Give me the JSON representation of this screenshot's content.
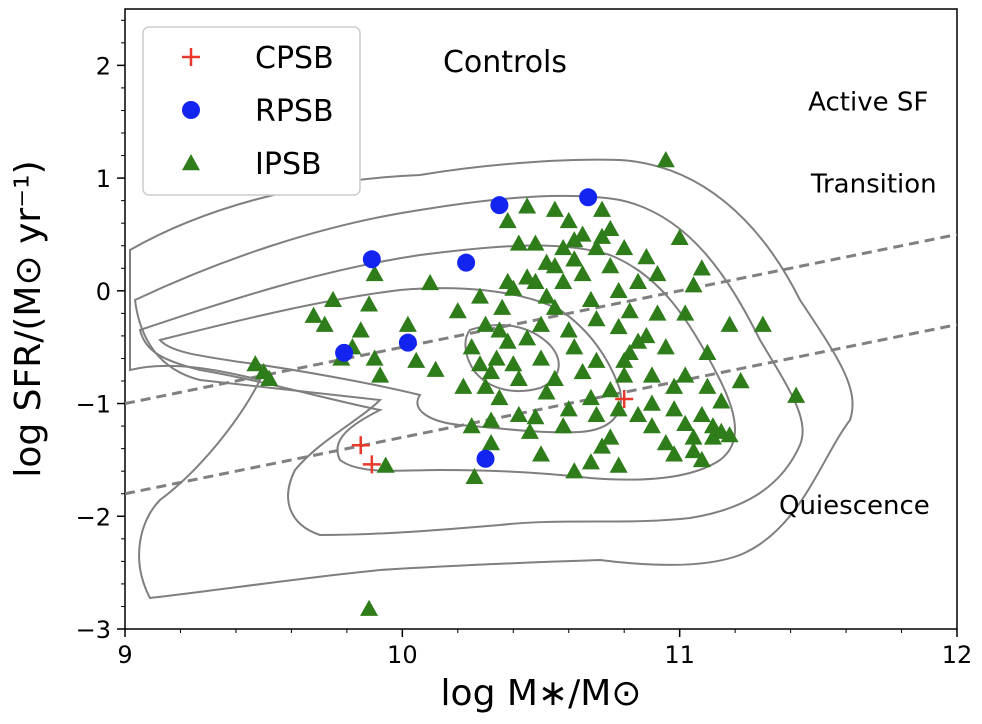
{
  "chart_data": {
    "type": "scatter",
    "title": "Controls",
    "xlabel": "log M∗/M⊙",
    "ylabel": "log SFR/(M⊙ yr⁻¹)",
    "xlim": [
      9,
      12
    ],
    "ylim": [
      -3,
      2.5
    ],
    "xticks": [
      9,
      10,
      11,
      12
    ],
    "xtick_labels": [
      "9",
      "10",
      "11",
      "12"
    ],
    "yticks": [
      -3,
      -2,
      -1,
      0,
      1,
      2
    ],
    "ytick_labels": [
      "−3",
      "−2",
      "−1",
      "0",
      "1",
      "2"
    ],
    "legend_position": "top-left",
    "region_labels": [
      {
        "text": "Active SF",
        "x": 11.68,
        "y": 1.6
      },
      {
        "text": "Transition",
        "x": 11.7,
        "y": 0.87
      },
      {
        "text": "Quiescence",
        "x": 11.63,
        "y": -1.98
      }
    ],
    "dividing_lines": [
      {
        "name": "upper",
        "x": [
          9,
          12
        ],
        "y": [
          -1.0,
          0.5
        ],
        "color": "#808080",
        "style": "dashed"
      },
      {
        "name": "lower",
        "x": [
          9,
          12
        ],
        "y": [
          -1.8,
          -0.3
        ],
        "color": "#808080",
        "style": "dashed"
      }
    ],
    "contour_color": "#7f7f7f",
    "series": [
      {
        "name": "CPSB",
        "marker": "plus",
        "color": "#e8392c",
        "points": [
          [
            9.85,
            -1.37
          ],
          [
            9.89,
            -1.54
          ],
          [
            10.8,
            -0.96
          ]
        ]
      },
      {
        "name": "RPSB",
        "marker": "circle",
        "color": "#1424f0",
        "points": [
          [
            9.79,
            -0.55
          ],
          [
            9.89,
            0.28
          ],
          [
            10.02,
            -0.46
          ],
          [
            10.23,
            0.25
          ],
          [
            10.3,
            -1.49
          ],
          [
            10.35,
            0.76
          ],
          [
            10.67,
            0.83
          ]
        ]
      },
      {
        "name": "IPSB",
        "marker": "triangle",
        "color": "#2e7d1a",
        "points": [
          [
            9.47,
            -0.65
          ],
          [
            9.5,
            -0.72
          ],
          [
            9.52,
            -0.78
          ],
          [
            9.68,
            -0.22
          ],
          [
            9.72,
            -0.3
          ],
          [
            9.75,
            -0.08
          ],
          [
            9.78,
            -0.6
          ],
          [
            9.82,
            -0.5
          ],
          [
            9.85,
            -0.35
          ],
          [
            9.88,
            -0.12
          ],
          [
            9.9,
            0.15
          ],
          [
            9.9,
            -0.6
          ],
          [
            9.92,
            -0.75
          ],
          [
            9.94,
            -1.55
          ],
          [
            10.02,
            -0.3
          ],
          [
            10.05,
            -0.62
          ],
          [
            10.1,
            0.07
          ],
          [
            10.12,
            -0.7
          ],
          [
            10.2,
            -0.18
          ],
          [
            10.25,
            -0.5
          ],
          [
            10.25,
            -1.2
          ],
          [
            10.28,
            -0.05
          ],
          [
            10.3,
            -0.3
          ],
          [
            10.3,
            -0.85
          ],
          [
            10.32,
            -1.15
          ],
          [
            10.34,
            -0.6
          ],
          [
            10.36,
            -0.15
          ],
          [
            10.38,
            -0.45
          ],
          [
            10.4,
            0.02
          ],
          [
            10.42,
            -0.78
          ],
          [
            10.45,
            0.12
          ],
          [
            10.48,
            0.42
          ],
          [
            10.5,
            -0.3
          ],
          [
            10.52,
            -0.05
          ],
          [
            10.55,
            0.22
          ],
          [
            10.58,
            0.38
          ],
          [
            10.6,
            0.62
          ],
          [
            10.62,
            -0.5
          ],
          [
            10.65,
            0.15
          ],
          [
            10.7,
            -0.25
          ],
          [
            10.72,
            0.48
          ],
          [
            10.75,
            -1.3
          ],
          [
            10.78,
            0.0
          ],
          [
            10.8,
            -0.62
          ],
          [
            10.85,
            -0.45
          ],
          [
            10.88,
            0.3
          ],
          [
            10.9,
            -1.0
          ],
          [
            10.92,
            -0.2
          ],
          [
            10.95,
            1.16
          ],
          [
            10.98,
            -1.05
          ],
          [
            11.0,
            0.47
          ],
          [
            11.02,
            -0.75
          ],
          [
            11.05,
            -1.3
          ],
          [
            11.08,
            -1.5
          ],
          [
            11.1,
            -0.55
          ],
          [
            11.12,
            -1.2
          ],
          [
            11.15,
            -1.25
          ],
          [
            11.18,
            -0.3
          ],
          [
            11.22,
            -0.8
          ],
          [
            11.3,
            -0.3
          ],
          [
            11.42,
            -0.93
          ],
          [
            10.38,
            0.62
          ],
          [
            10.45,
            0.75
          ],
          [
            10.55,
            0.72
          ],
          [
            10.58,
            0.08
          ],
          [
            10.62,
            0.28
          ],
          [
            10.65,
            0.5
          ],
          [
            10.68,
            -0.08
          ],
          [
            10.72,
            0.72
          ],
          [
            10.75,
            0.22
          ],
          [
            10.7,
            -0.62
          ],
          [
            10.68,
            -0.95
          ],
          [
            10.78,
            -0.32
          ],
          [
            10.82,
            -0.18
          ],
          [
            10.6,
            -1.05
          ],
          [
            10.55,
            -0.78
          ],
          [
            10.52,
            -0.9
          ],
          [
            10.48,
            -1.12
          ],
          [
            10.42,
            -1.1
          ],
          [
            10.46,
            -1.25
          ],
          [
            10.5,
            -1.45
          ],
          [
            10.58,
            -1.2
          ],
          [
            10.62,
            -1.6
          ],
          [
            10.68,
            -1.52
          ],
          [
            10.72,
            -1.38
          ],
          [
            10.78,
            -1.55
          ],
          [
            10.85,
            -1.1
          ],
          [
            10.9,
            -1.2
          ],
          [
            10.95,
            -1.35
          ],
          [
            10.98,
            -1.45
          ],
          [
            11.02,
            -1.18
          ],
          [
            11.05,
            -1.42
          ],
          [
            11.08,
            -1.1
          ],
          [
            11.12,
            -1.3
          ],
          [
            11.15,
            -0.98
          ],
          [
            11.18,
            -1.28
          ],
          [
            10.95,
            -0.5
          ],
          [
            10.98,
            -0.85
          ],
          [
            11.02,
            -0.2
          ],
          [
            11.05,
            0.05
          ],
          [
            11.08,
            0.2
          ],
          [
            11.1,
            -0.85
          ],
          [
            10.85,
            0.08
          ],
          [
            10.88,
            -0.4
          ],
          [
            10.9,
            -0.75
          ],
          [
            10.92,
            0.15
          ],
          [
            10.8,
            0.38
          ],
          [
            10.75,
            0.55
          ],
          [
            10.7,
            0.38
          ],
          [
            10.62,
            0.45
          ],
          [
            10.52,
            0.25
          ],
          [
            10.48,
            0.08
          ],
          [
            10.42,
            0.42
          ],
          [
            10.38,
            0.08
          ],
          [
            10.35,
            -0.35
          ],
          [
            10.32,
            -0.72
          ],
          [
            10.28,
            -0.65
          ],
          [
            10.22,
            -0.85
          ],
          [
            10.26,
            -1.65
          ],
          [
            10.3,
            -1.45
          ],
          [
            10.32,
            -1.35
          ],
          [
            10.35,
            -0.95
          ],
          [
            10.4,
            -0.65
          ],
          [
            10.45,
            -0.42
          ],
          [
            10.5,
            -0.6
          ],
          [
            10.55,
            -0.15
          ],
          [
            10.6,
            -0.35
          ],
          [
            10.65,
            -0.72
          ],
          [
            10.7,
            -1.1
          ],
          [
            10.75,
            -0.88
          ],
          [
            10.78,
            -1.05
          ],
          [
            10.8,
            -0.75
          ],
          [
            10.82,
            -0.55
          ],
          [
            9.88,
            -2.82
          ]
        ]
      }
    ]
  }
}
